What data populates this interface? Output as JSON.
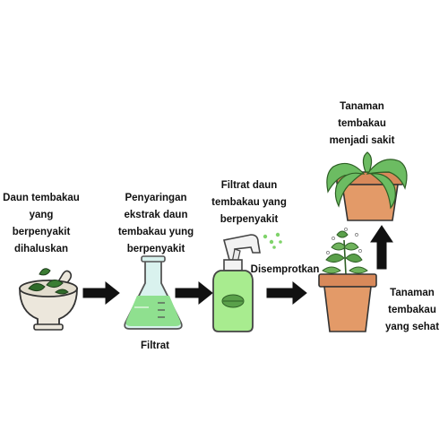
{
  "steps": [
    {
      "id": "grind",
      "text": "Daun tembakau\nyang\nberpenyakit\ndihaluskan",
      "icon": "mortar-pestle-icon"
    },
    {
      "id": "filter",
      "text": "Penyaringan\nekstrak daun\ntembakau yung\nberpenyakit",
      "icon": "erlenmeyer-flask-icon"
    },
    {
      "id": "filtrate",
      "text": "Filtrat daun\ntembakau yang\nberpenyakit",
      "icon": "spray-bottle-icon"
    },
    {
      "id": "healthy",
      "text": "Tanaman\ntembakau\nyang sehat",
      "icon": "healthy-plant-pot-icon"
    },
    {
      "id": "sick",
      "text": "Tanaman\ntembakau\nmenjadi sakit",
      "icon": "wilted-plant-pot-icon"
    }
  ],
  "labels": {
    "filtrat": "Filtrat",
    "disemprotkan": "Disemprotkan"
  },
  "colors": {
    "arrow_fill": "#111111",
    "flask_liquid": "#8fe08f",
    "flask_glass": "#d9f2ee",
    "bottle_body": "#a8ec8f",
    "pot": "#e39a68",
    "pot_rim": "#d8895a",
    "leaf_healthy": "#5aa04a",
    "leaf_sick": "#6cbc62",
    "mortar": "#ece7dc"
  }
}
